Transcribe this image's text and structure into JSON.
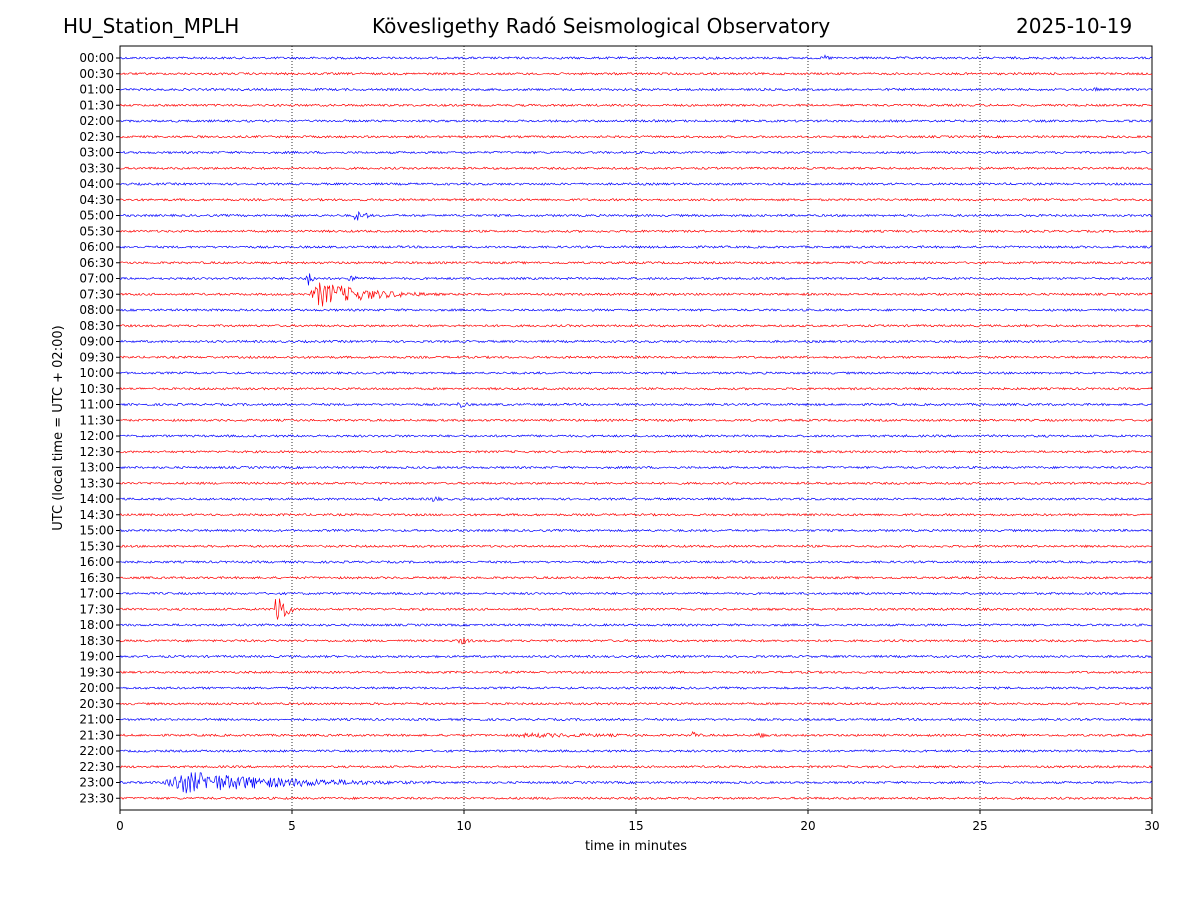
{
  "header": {
    "station": "HU_Station_MPLH",
    "observatory": "Kövesligethy Radó Seismological Observatory",
    "date": "2025-10-19"
  },
  "chart_data": {
    "type": "line",
    "title": "Kövesligethy Radó Seismological Observatory",
    "xlabel": "time in minutes",
    "ylabel": "UTC (local time = UTC + 02:00)",
    "xlim": [
      0,
      30
    ],
    "xticks": [
      "0",
      "5",
      "10",
      "15",
      "20",
      "25",
      "30"
    ],
    "xtick_values": [
      0,
      5,
      10,
      15,
      20,
      25,
      30
    ],
    "grid": "vertical dotted at 5-minute ticks",
    "colors": [
      "#0000ff",
      "#ff0000"
    ],
    "rows": [
      "00:00",
      "00:30",
      "01:00",
      "01:30",
      "02:00",
      "02:30",
      "03:00",
      "03:30",
      "04:00",
      "04:30",
      "05:00",
      "05:30",
      "06:00",
      "06:30",
      "07:00",
      "07:30",
      "08:00",
      "08:30",
      "09:00",
      "09:30",
      "10:00",
      "10:30",
      "11:00",
      "11:30",
      "12:00",
      "12:30",
      "13:00",
      "13:30",
      "14:00",
      "14:30",
      "15:00",
      "15:30",
      "16:00",
      "16:30",
      "17:00",
      "17:30",
      "18:00",
      "18:30",
      "19:00",
      "19:30",
      "20:00",
      "20:30",
      "21:00",
      "21:30",
      "22:00",
      "22:30",
      "23:00",
      "23:30"
    ],
    "events": [
      {
        "row": 0,
        "t": 20.4,
        "dur": 0.6,
        "amp": 4,
        "color": "blue"
      },
      {
        "row": 0,
        "t": 17.0,
        "dur": 0.5,
        "amp": 2,
        "color": "blue"
      },
      {
        "row": 2,
        "t": 28.3,
        "dur": 0.2,
        "amp": 5,
        "color": "blue"
      },
      {
        "row": 10,
        "t": 6.8,
        "dur": 0.3,
        "amp": 11,
        "color": "blue"
      },
      {
        "row": 10,
        "t": 7.1,
        "dur": 0.2,
        "amp": 7,
        "color": "blue"
      },
      {
        "row": 10,
        "t": 9.2,
        "dur": 0.6,
        "amp": 2,
        "color": "blue"
      },
      {
        "row": 14,
        "t": 5.4,
        "dur": 0.3,
        "amp": 14,
        "color": "blue"
      },
      {
        "row": 14,
        "t": 6.6,
        "dur": 0.4,
        "amp": 8,
        "color": "blue"
      },
      {
        "row": 15,
        "t": 5.5,
        "dur": 3.0,
        "amp": 16,
        "color": "red"
      },
      {
        "row": 22,
        "t": 9.8,
        "dur": 0.5,
        "amp": 6,
        "color": "blue"
      },
      {
        "row": 24,
        "t": 22.8,
        "dur": 0.3,
        "amp": 2,
        "color": "blue"
      },
      {
        "row": 28,
        "t": 7.4,
        "dur": 0.4,
        "amp": 4,
        "color": "blue"
      },
      {
        "row": 28,
        "t": 9.0,
        "dur": 0.6,
        "amp": 5,
        "color": "blue"
      },
      {
        "row": 32,
        "t": 19.0,
        "dur": 0.3,
        "amp": 3,
        "color": "blue"
      },
      {
        "row": 35,
        "t": 4.5,
        "dur": 0.4,
        "amp": 38,
        "color": "red"
      },
      {
        "row": 37,
        "t": 9.8,
        "dur": 0.7,
        "amp": 5,
        "color": "red"
      },
      {
        "row": 43,
        "t": 11.0,
        "dur": 9.0,
        "amp": 3,
        "color": "red"
      },
      {
        "row": 43,
        "t": 16.6,
        "dur": 0.4,
        "amp": 6,
        "color": "red"
      },
      {
        "row": 43,
        "t": 18.5,
        "dur": 0.4,
        "amp": 6,
        "color": "red"
      },
      {
        "row": 46,
        "t": 1.2,
        "dur": 6.5,
        "amp": 14,
        "color": "blue"
      }
    ]
  }
}
